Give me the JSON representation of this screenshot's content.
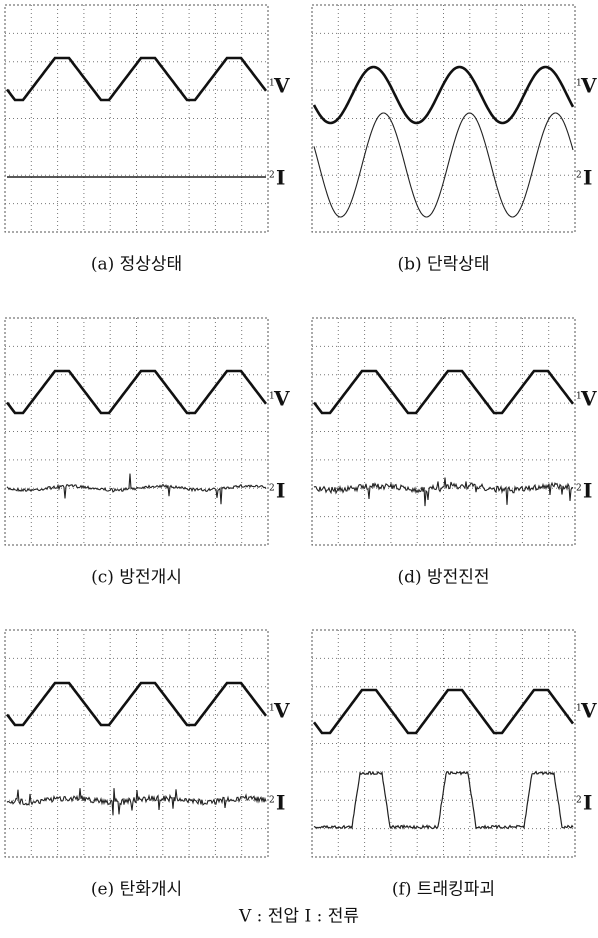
{
  "panels": [
    {
      "caption": "(a) 정상상태",
      "v_marker": "1",
      "v_label": "V",
      "i_marker": "2",
      "i_label": "I"
    },
    {
      "caption": "(b) 단락상태",
      "v_marker": "1",
      "v_label": "V",
      "i_marker": "2",
      "i_label": "I"
    },
    {
      "caption": "(c) 방전개시",
      "v_marker": "1",
      "v_label": "V",
      "i_marker": "2",
      "i_label": "I"
    },
    {
      "caption": "(d) 방전진전",
      "v_marker": "1",
      "v_label": "V",
      "i_marker": "2",
      "i_label": "I"
    },
    {
      "caption": "(e) 탄화개시",
      "v_marker": "1",
      "v_label": "V",
      "i_marker": "2",
      "i_label": "I"
    },
    {
      "caption": "(f) 트래킹파괴",
      "v_marker": "1",
      "v_label": "V",
      "i_marker": "2",
      "i_label": "I"
    }
  ],
  "legend": "V : 전압 I : 전류"
}
